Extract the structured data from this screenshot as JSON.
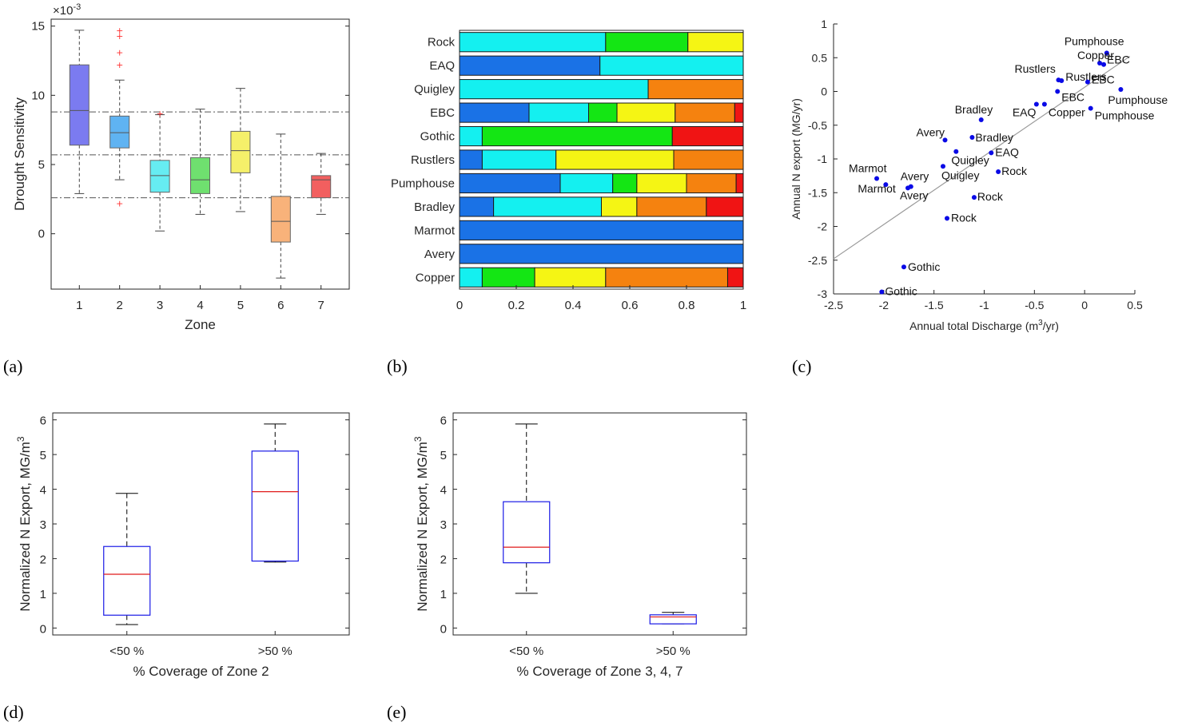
{
  "panel_labels": [
    "(a)",
    "(b)",
    "(c)",
    "(d)",
    "(e)"
  ],
  "chart_data": [
    {
      "panel": "(a)",
      "type": "box",
      "xlabel": "Zone",
      "ylabel": "Drought Sensitivity",
      "exponent_label": "×10",
      "exponent_power": "-3",
      "categories": [
        "1",
        "2",
        "3",
        "4",
        "5",
        "6",
        "7"
      ],
      "xlim": [
        0.3,
        7.7
      ],
      "ylim": [
        -4,
        15.5
      ],
      "yticks": [
        0,
        5,
        10,
        15
      ],
      "reference_lines": [
        8.8,
        5.7,
        2.6
      ],
      "colors": [
        "#7b7bf0",
        "#5fb3f2",
        "#66ecf2",
        "#6fe06f",
        "#f5f06a",
        "#f8b27a",
        "#f25f5f"
      ],
      "boxes": [
        {
          "cat": "1",
          "whisker_low": 2.9,
          "q1": 6.4,
          "median": 8.9,
          "q3": 12.2,
          "whisker_high": 14.7,
          "outliers": []
        },
        {
          "cat": "2",
          "whisker_low": 3.9,
          "q1": 6.2,
          "median": 7.3,
          "q3": 8.5,
          "whisker_high": 11.1,
          "outliers": [
            2.2,
            12.2,
            13.1,
            14.3,
            14.7
          ]
        },
        {
          "cat": "3",
          "whisker_low": 0.2,
          "q1": 3.0,
          "median": 4.2,
          "q3": 5.3,
          "whisker_high": 8.6,
          "outliers": [
            8.7
          ]
        },
        {
          "cat": "4",
          "whisker_low": 1.4,
          "q1": 2.9,
          "median": 3.9,
          "q3": 5.5,
          "whisker_high": 9.0,
          "outliers": []
        },
        {
          "cat": "5",
          "whisker_low": 1.6,
          "q1": 4.4,
          "median": 6.0,
          "q3": 7.4,
          "whisker_high": 10.5,
          "outliers": []
        },
        {
          "cat": "6",
          "whisker_low": -3.2,
          "q1": -0.6,
          "median": 0.9,
          "q3": 2.7,
          "whisker_high": 7.2,
          "outliers": []
        },
        {
          "cat": "7",
          "whisker_low": 1.4,
          "q1": 2.6,
          "median": 3.9,
          "q3": 4.2,
          "whisker_high": 5.8,
          "outliers": []
        }
      ]
    },
    {
      "panel": "(b)",
      "type": "bar",
      "orientation": "horizontal-stacked",
      "xlim": [
        0,
        1
      ],
      "xticks": [
        "0",
        "0.2",
        "0.4",
        "0.6",
        "0.8",
        "1"
      ],
      "categories": [
        "Rock",
        "EAQ",
        "Quigley",
        "EBC",
        "Gothic",
        "Rustlers",
        "Pumphouse",
        "Bradley",
        "Marmot",
        "Avery",
        "Copper"
      ],
      "series": [
        {
          "color": "#1a72e6",
          "values": [
            0.0,
            0.495,
            0.0,
            0.245,
            0.0,
            0.08,
            0.355,
            0.12,
            1.0,
            1.0,
            0.0
          ]
        },
        {
          "color": "#14f0f0",
          "values": [
            0.515,
            0.505,
            0.665,
            0.21,
            0.08,
            0.26,
            0.185,
            0.38,
            0.0,
            0.0,
            0.08
          ]
        },
        {
          "color": "#14e614",
          "values": [
            0.29,
            0.0,
            0.0,
            0.1,
            0.67,
            0.0,
            0.085,
            0.0,
            0.0,
            0.0,
            0.185
          ]
        },
        {
          "color": "#f5f514",
          "values": [
            0.195,
            0.0,
            0.0,
            0.205,
            0.0,
            0.415,
            0.175,
            0.125,
            0.0,
            0.0,
            0.25
          ]
        },
        {
          "color": "#f5820f",
          "values": [
            0.0,
            0.0,
            0.335,
            0.21,
            0.0,
            0.245,
            0.175,
            0.245,
            0.0,
            0.0,
            0.43
          ]
        },
        {
          "color": "#f01414",
          "values": [
            0.0,
            0.0,
            0.0,
            0.03,
            0.25,
            0.0,
            0.025,
            0.13,
            0.0,
            0.0,
            0.055
          ]
        }
      ]
    },
    {
      "panel": "(c)",
      "type": "scatter",
      "xlabel": "Annual total Discharge (m",
      "xlabel_sup": "3",
      "xlabel_tail": "/yr)",
      "ylabel": "Annual N export (MG/yr)",
      "xlim": [
        -2.5,
        0.5
      ],
      "ylim": [
        -3,
        1
      ],
      "xticks": [
        "-2.5",
        "-2",
        "-1.5",
        "-1",
        "-0.5",
        "0",
        "0.5"
      ],
      "yticks": [
        "1",
        "0.5",
        "0",
        "-0.5",
        "-1",
        "-1.5",
        "-2",
        "-2.5",
        "-3"
      ],
      "fit_line": {
        "x": [
          -2.5,
          0.45
        ],
        "y": [
          -2.48,
          0.52
        ]
      },
      "points": [
        {
          "label": "Pumphouse",
          "x": 0.22,
          "y": 0.57
        },
        {
          "label": "Copper",
          "x": 0.15,
          "y": 0.42
        },
        {
          "label": "EBC",
          "x": 0.19,
          "y": 0.4
        },
        {
          "label": "Rustlers",
          "x": -0.26,
          "y": 0.17
        },
        {
          "label": "Rustlers",
          "x": -0.23,
          "y": 0.16
        },
        {
          "label": "EBC",
          "x": 0.03,
          "y": 0.14
        },
        {
          "label": "Pumphouse",
          "x": 0.36,
          "y": 0.03
        },
        {
          "label": "EBC",
          "x": -0.27,
          "y": 0.0
        },
        {
          "label": "Copper",
          "x": -0.4,
          "y": -0.19
        },
        {
          "label": "EAQ",
          "x": -0.48,
          "y": -0.19
        },
        {
          "label": "Pumphouse",
          "x": 0.06,
          "y": -0.25
        },
        {
          "label": "Bradley",
          "x": -1.03,
          "y": -0.42
        },
        {
          "label": "Bradley",
          "x": -1.12,
          "y": -0.68
        },
        {
          "label": "Avery",
          "x": -1.39,
          "y": -0.72
        },
        {
          "label": "Quigley",
          "x": -1.28,
          "y": -0.89
        },
        {
          "label": "EAQ",
          "x": -0.93,
          "y": -0.91
        },
        {
          "label": "Quigley",
          "x": -1.41,
          "y": -1.11
        },
        {
          "label": "Rock",
          "x": -0.86,
          "y": -1.19
        },
        {
          "label": "Marmot",
          "x": -2.07,
          "y": -1.29
        },
        {
          "label": "Marmot",
          "x": -1.98,
          "y": -1.38
        },
        {
          "label": "Avery",
          "x": -1.73,
          "y": -1.41
        },
        {
          "label": "Avery",
          "x": -1.76,
          "y": -1.43
        },
        {
          "label": "Rock",
          "x": -1.1,
          "y": -1.57
        },
        {
          "label": "Rock",
          "x": -1.37,
          "y": -1.88
        },
        {
          "label": "Gothic",
          "x": -1.8,
          "y": -2.6
        },
        {
          "label": "Gothic",
          "x": -2.02,
          "y": -2.97
        }
      ]
    },
    {
      "panel": "(d)",
      "type": "box",
      "xlabel": "% Coverage of Zone 2",
      "ylabel": "Normalized N Export, MG/m",
      "ylabel_sup": "3",
      "categories": [
        "<50 %",
        ">50 %"
      ],
      "ylim": [
        -0.2,
        6.2
      ],
      "yticks": [
        0,
        1,
        2,
        3,
        4,
        5,
        6
      ],
      "boxes": [
        {
          "cat": "<50 %",
          "whisker_low": 0.1,
          "q1": 0.37,
          "median": 1.55,
          "q3": 2.35,
          "whisker_high": 3.88
        },
        {
          "cat": ">50 %",
          "whisker_low": 1.9,
          "q1": 1.93,
          "median": 3.93,
          "q3": 5.1,
          "whisker_high": 5.88
        }
      ]
    },
    {
      "panel": "(e)",
      "type": "box",
      "xlabel": "% Coverage of Zone 3, 4, 7",
      "ylabel": "Normalized N Export, MG/m",
      "ylabel_sup": "3",
      "categories": [
        "<50 %",
        ">50 %"
      ],
      "ylim": [
        -0.2,
        6.2
      ],
      "yticks": [
        0,
        1,
        2,
        3,
        4,
        5,
        6
      ],
      "boxes": [
        {
          "cat": "<50 %",
          "whisker_low": 1.0,
          "q1": 1.88,
          "median": 2.33,
          "q3": 3.64,
          "whisker_high": 5.88
        },
        {
          "cat": ">50 %",
          "whisker_low": 0.12,
          "q1": 0.12,
          "median": 0.32,
          "q3": 0.38,
          "whisker_high": 0.45
        }
      ]
    }
  ]
}
